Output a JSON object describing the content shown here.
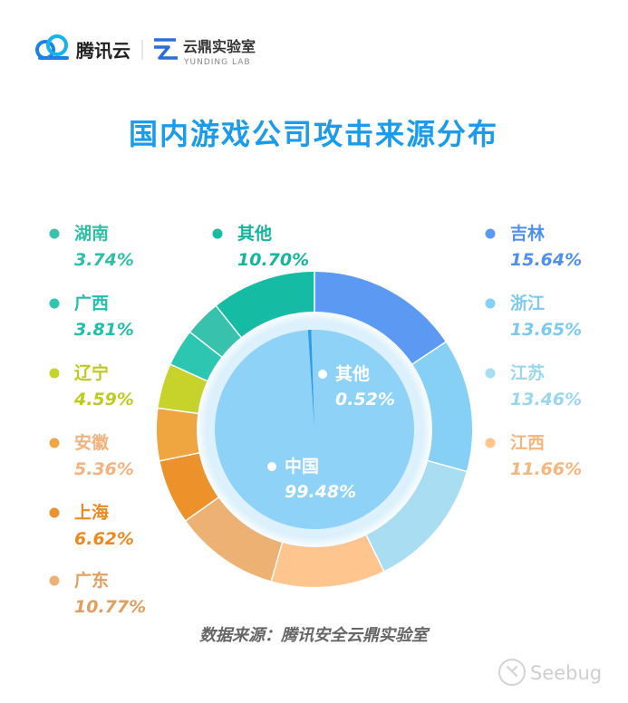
{
  "header": {
    "tencent_cloud_name": "腾讯云",
    "lab_name": "云鼎实验室",
    "lab_name_en": "YUNDING LAB"
  },
  "chart_data": {
    "type": "pie",
    "title": "国内游戏公司攻击来源分布",
    "outer": {
      "slices": [
        {
          "label": "吉林",
          "value": 15.64,
          "pct_text": "15.64%",
          "color": "#5B99F3"
        },
        {
          "label": "浙江",
          "value": 13.65,
          "pct_text": "13.65%",
          "color": "#86CFF5"
        },
        {
          "label": "江苏",
          "value": 13.46,
          "pct_text": "13.46%",
          "color": "#A9DDF2"
        },
        {
          "label": "江西",
          "value": 11.66,
          "pct_text": "11.66%",
          "color": "#FEC58F"
        },
        {
          "label": "广东",
          "value": 10.77,
          "pct_text": "10.77%",
          "color": "#EDB173"
        },
        {
          "label": "上海",
          "value": 6.62,
          "pct_text": "6.62%",
          "color": "#ED922B"
        },
        {
          "label": "安徽",
          "value": 5.36,
          "pct_text": "5.36%",
          "color": "#F0A640"
        },
        {
          "label": "辽宁",
          "value": 4.59,
          "pct_text": "4.59%",
          "color": "#C7D22B"
        },
        {
          "label": "广西",
          "value": 3.81,
          "pct_text": "3.81%",
          "color": "#2DC7B1"
        },
        {
          "label": "湖南",
          "value": 3.74,
          "pct_text": "3.74%",
          "color": "#38C2AE"
        },
        {
          "label": "其他",
          "value": 10.7,
          "pct_text": "10.70%",
          "color": "#16BBA4"
        }
      ]
    },
    "inner": {
      "slices": [
        {
          "label": "中国",
          "value": 99.48,
          "pct_text": "99.48%",
          "color": "#8ED3F7"
        },
        {
          "label": "其他",
          "value": 0.52,
          "pct_text": "0.52%",
          "color": "#2C9BEB"
        }
      ]
    },
    "source_note": "数据来源：腾讯安全云鼎实验室"
  },
  "watermark": {
    "text": "Seebug"
  }
}
